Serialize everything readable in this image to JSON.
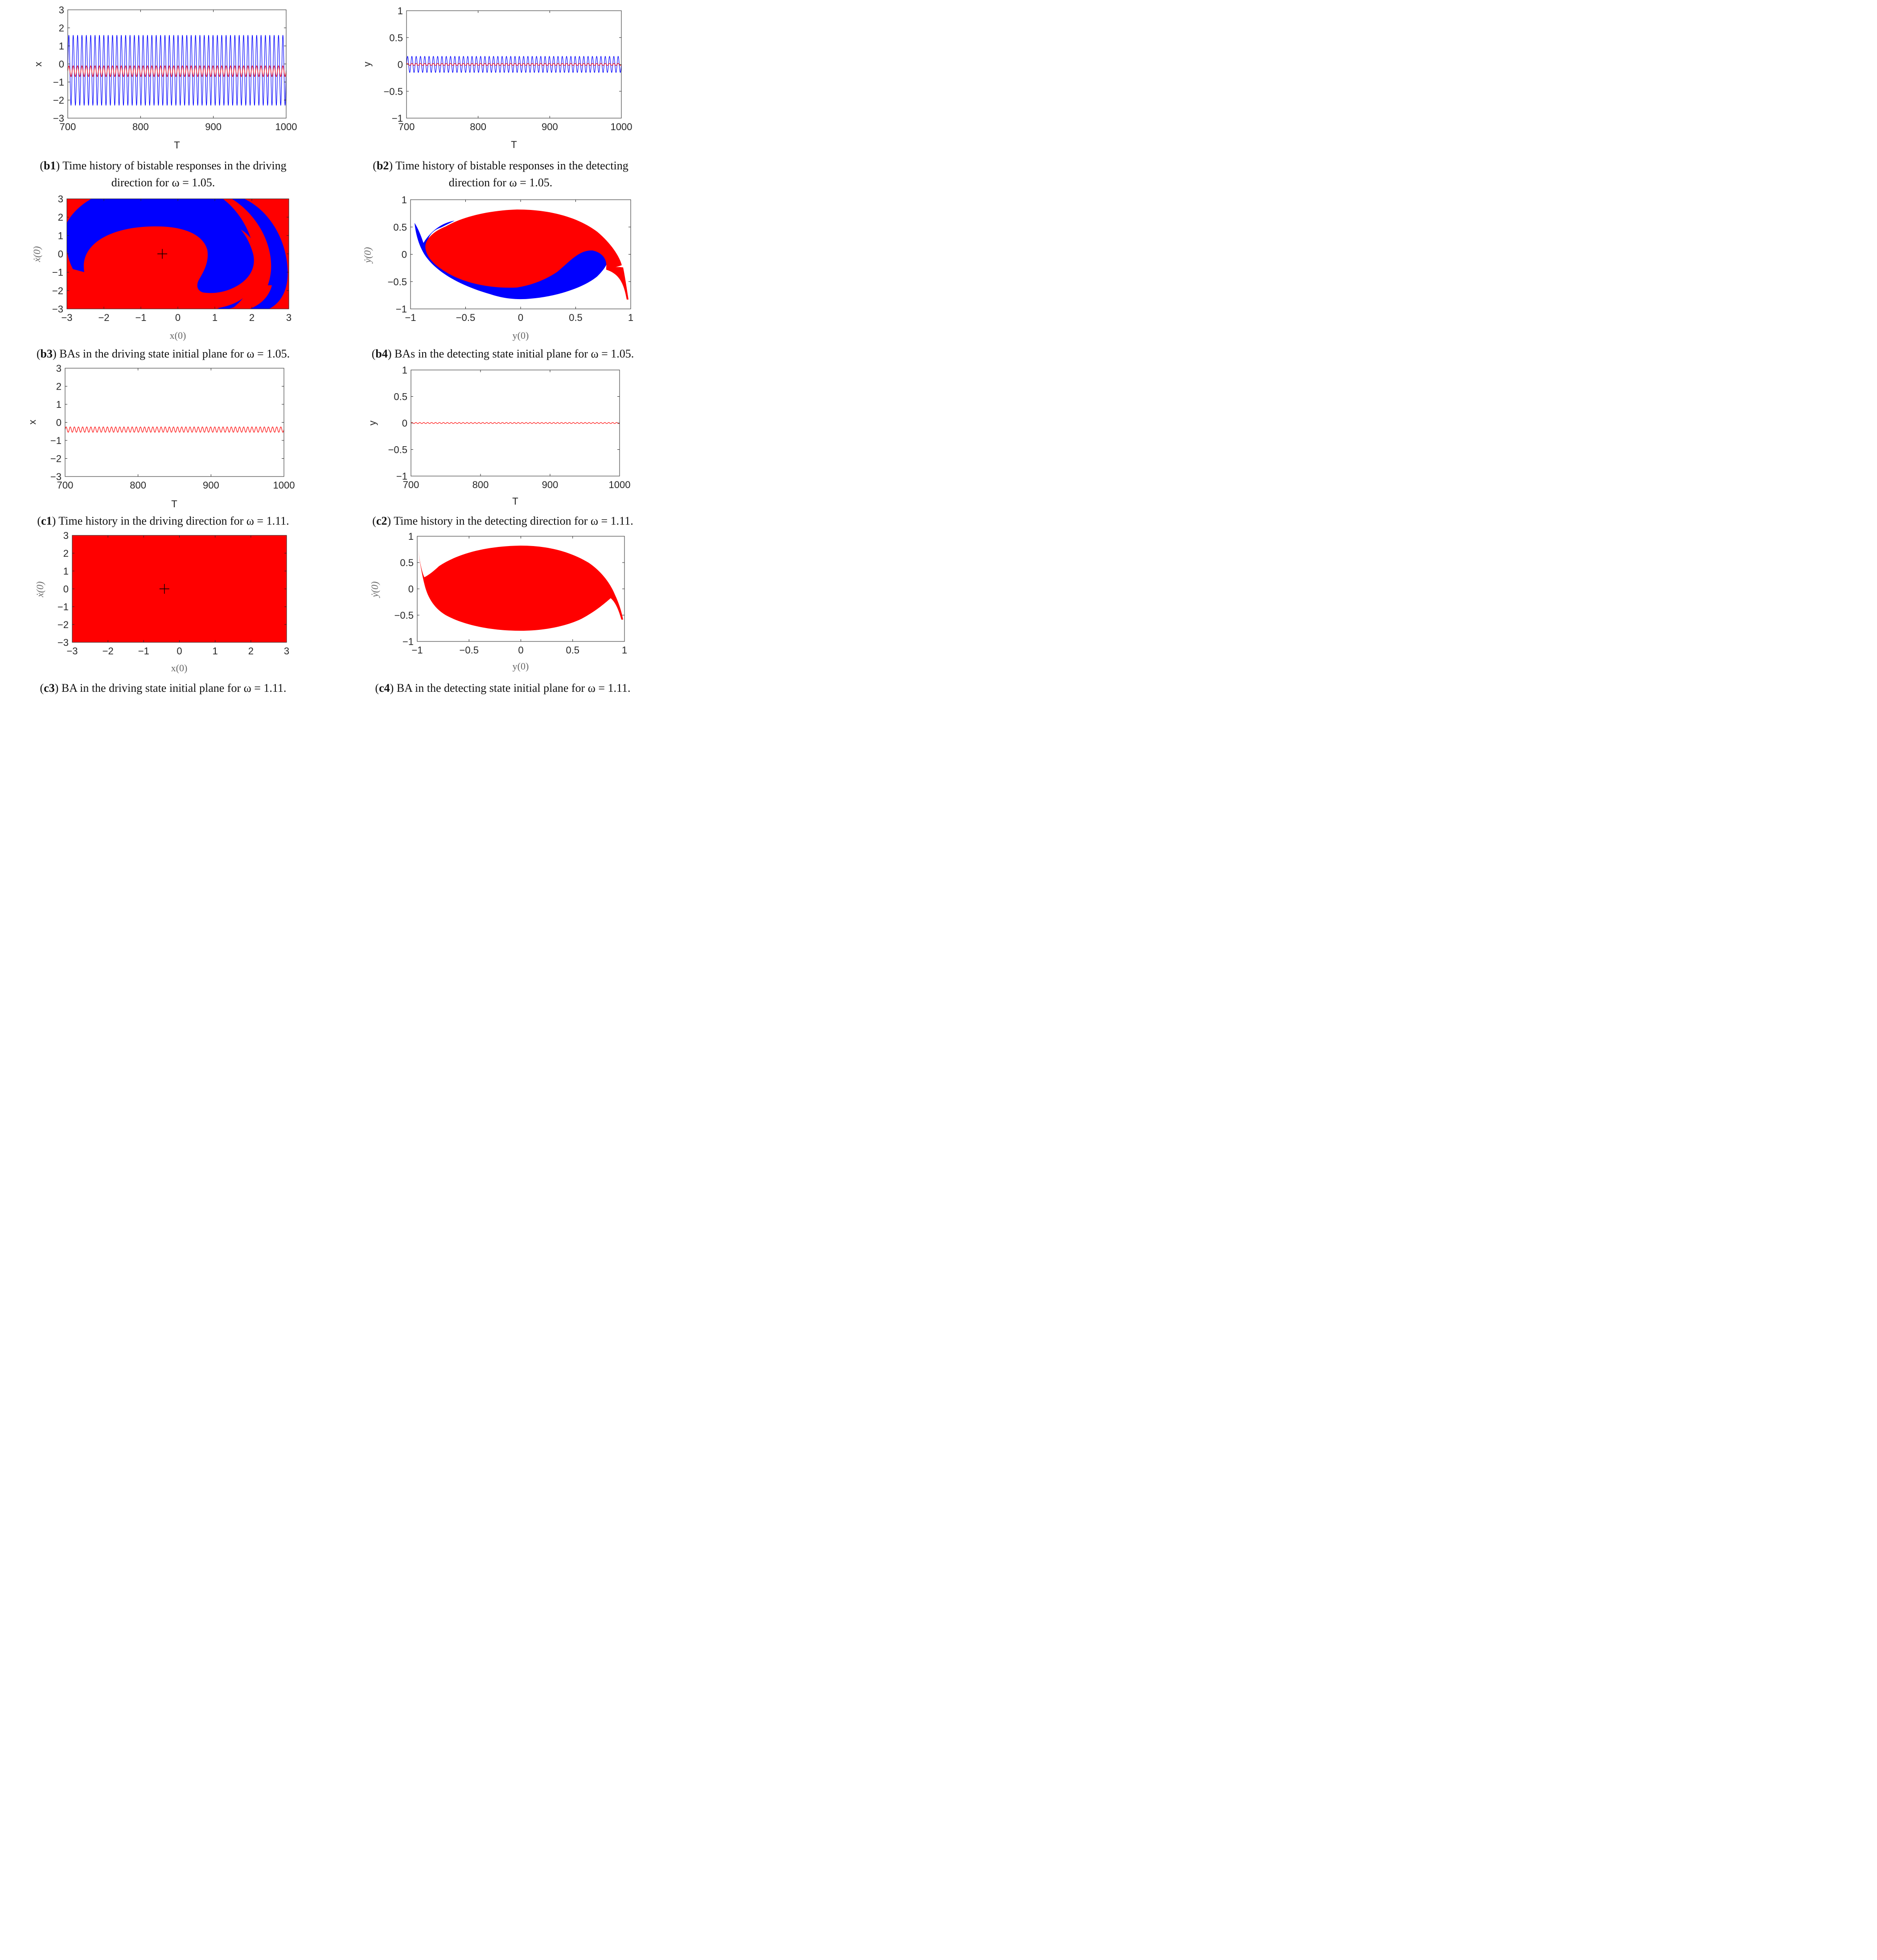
{
  "colors": {
    "red": "#ff0000",
    "blue": "#0000ff",
    "axis": "#262626",
    "caption": "#111111"
  },
  "chart_data": [
    {
      "id": "b1",
      "type": "line",
      "xlabel": "T",
      "ylabel": "x",
      "xlim": [
        700,
        1000
      ],
      "ylim": [
        -3,
        3
      ],
      "xticks": [
        700,
        800,
        900,
        1000
      ],
      "yticks": [
        -3,
        -2,
        -1,
        0,
        1,
        2,
        3
      ],
      "xtick_labels": [
        "700",
        "800",
        "900",
        "1000"
      ],
      "ytick_labels": [
        "−3",
        "−2",
        "−1",
        "0",
        "1",
        "2",
        "3"
      ],
      "series": [
        {
          "name": "blue response",
          "color": "#0000ff",
          "center": -0.35,
          "amplitude": 1.95,
          "cycles": 50
        },
        {
          "name": "red response",
          "color": "#ff0000",
          "center": -0.4,
          "amplitude": 0.3,
          "cycles": 50
        }
      ],
      "caption": {
        "tag": "b1",
        "text": ") Time history of bistable responses in the driving",
        "line2": "direction for ω = 1.05."
      }
    },
    {
      "id": "b2",
      "type": "line",
      "xlabel": "T",
      "ylabel": "y",
      "xlim": [
        700,
        1000
      ],
      "ylim": [
        -1,
        1
      ],
      "xticks": [
        700,
        800,
        900,
        1000
      ],
      "yticks": [
        -1,
        -0.5,
        0,
        0.5,
        1
      ],
      "xtick_labels": [
        "700",
        "800",
        "900",
        "1000"
      ],
      "ytick_labels": [
        "−1",
        "−0.5",
        "0",
        "0.5",
        "1"
      ],
      "series": [
        {
          "name": "blue response",
          "color": "#0000ff",
          "center": 0.0,
          "amplitude": 0.15,
          "cycles": 50
        },
        {
          "name": "red response",
          "color": "#ff0000",
          "center": 0.0,
          "amplitude": 0.02,
          "cycles": 50
        }
      ],
      "caption": {
        "tag": "b2",
        "text": ") Time history of bistable responses in the detecting",
        "line2": "direction for ω = 1.05."
      }
    },
    {
      "id": "b3",
      "type": "heatmap",
      "xlabel": "x(0)",
      "ylabel": "ẋ(0)",
      "xlim": [
        -3,
        3
      ],
      "ylim": [
        -3,
        3
      ],
      "xticks": [
        -3,
        -2,
        -1,
        0,
        1,
        2,
        3
      ],
      "yticks": [
        -3,
        -2,
        -1,
        0,
        1,
        2,
        3
      ],
      "xtick_labels": [
        "−3",
        "−2",
        "−1",
        "0",
        "1",
        "2",
        "3"
      ],
      "ytick_labels": [
        "−3",
        "−2",
        "−1",
        "0",
        "1",
        "2",
        "3"
      ],
      "basins": [
        "red",
        "blue"
      ],
      "attractor_marker": [
        -0.42,
        0
      ],
      "caption": {
        "tag": "b3",
        "text": ") BAs in the driving state initial plane for ω = 1.05."
      }
    },
    {
      "id": "b4",
      "type": "heatmap",
      "xlabel": "y(0)",
      "ylabel": "ẏ(0)",
      "xlim": [
        -1,
        1
      ],
      "ylim": [
        -1,
        1
      ],
      "xticks": [
        -1,
        -0.5,
        0,
        0.5,
        1
      ],
      "yticks": [
        -1,
        -0.5,
        0,
        0.5,
        1
      ],
      "xtick_labels": [
        "−1",
        "−0.5",
        "0",
        "0.5",
        "1"
      ],
      "ytick_labels": [
        "−1",
        "−0.5",
        "0",
        "0.5",
        "1"
      ],
      "basins": [
        "red",
        "blue"
      ],
      "caption": {
        "tag": "b4",
        "text": ") BAs in the detecting state initial plane for ω = 1.05."
      }
    },
    {
      "id": "c1",
      "type": "line",
      "xlabel": "T",
      "ylabel": "x",
      "xlim": [
        700,
        1000
      ],
      "ylim": [
        -3,
        3
      ],
      "xticks": [
        700,
        800,
        900,
        1000
      ],
      "yticks": [
        -3,
        -2,
        -1,
        0,
        1,
        2,
        3
      ],
      "xtick_labels": [
        "700",
        "800",
        "900",
        "1000"
      ],
      "ytick_labels": [
        "−3",
        "−2",
        "−1",
        "0",
        "1",
        "2",
        "3"
      ],
      "series": [
        {
          "name": "red response",
          "color": "#ff0000",
          "center": -0.4,
          "amplitude": 0.15,
          "cycles": 53
        }
      ],
      "caption": {
        "tag": "c1",
        "text": ") Time history in the driving direction for ω = 1.11."
      }
    },
    {
      "id": "c2",
      "type": "line",
      "xlabel": "T",
      "ylabel": "y",
      "xlim": [
        700,
        1000
      ],
      "ylim": [
        -1,
        1
      ],
      "xticks": [
        700,
        800,
        900,
        1000
      ],
      "yticks": [
        -1,
        -0.5,
        0,
        0.5,
        1
      ],
      "xtick_labels": [
        "700",
        "800",
        "900",
        "1000"
      ],
      "ytick_labels": [
        "−1",
        "−0.5",
        "0",
        "0.5",
        "1"
      ],
      "series": [
        {
          "name": "red response",
          "color": "#ff0000",
          "center": 0.0,
          "amplitude": 0.01,
          "cycles": 53
        }
      ],
      "caption": {
        "tag": "c2",
        "text": ") Time history in the detecting direction for ω = 1.11."
      }
    },
    {
      "id": "c3",
      "type": "heatmap",
      "xlabel": "x(0)",
      "ylabel": "ẋ(0)",
      "xlim": [
        -3,
        3
      ],
      "ylim": [
        -3,
        3
      ],
      "xticks": [
        -3,
        -2,
        -1,
        0,
        1,
        2,
        3
      ],
      "yticks": [
        -3,
        -2,
        -1,
        0,
        1,
        2,
        3
      ],
      "xtick_labels": [
        "−3",
        "−2",
        "−1",
        "0",
        "1",
        "2",
        "3"
      ],
      "ytick_labels": [
        "−3",
        "−2",
        "−1",
        "0",
        "1",
        "2",
        "3"
      ],
      "basins": [
        "red"
      ],
      "attractor_marker": [
        -0.42,
        0
      ],
      "caption": {
        "tag": "c3",
        "text": ") BA in the driving state initial plane for ω = 1.11."
      }
    },
    {
      "id": "c4",
      "type": "heatmap",
      "xlabel": "y(0)",
      "ylabel": "ẏ(0)",
      "xlim": [
        -1,
        1
      ],
      "ylim": [
        -1,
        1
      ],
      "xticks": [
        -1,
        -0.5,
        0,
        0.5,
        1
      ],
      "yticks": [
        -1,
        -0.5,
        0,
        0.5,
        1
      ],
      "xtick_labels": [
        "−1",
        "−0.5",
        "0",
        "0.5",
        "1"
      ],
      "ytick_labels": [
        "−1",
        "−0.5",
        "0",
        "0.5",
        "1"
      ],
      "basins": [
        "red"
      ],
      "caption": {
        "tag": "c4",
        "text": ") BA in the detecting state initial plane for ω = 1.11."
      }
    }
  ]
}
